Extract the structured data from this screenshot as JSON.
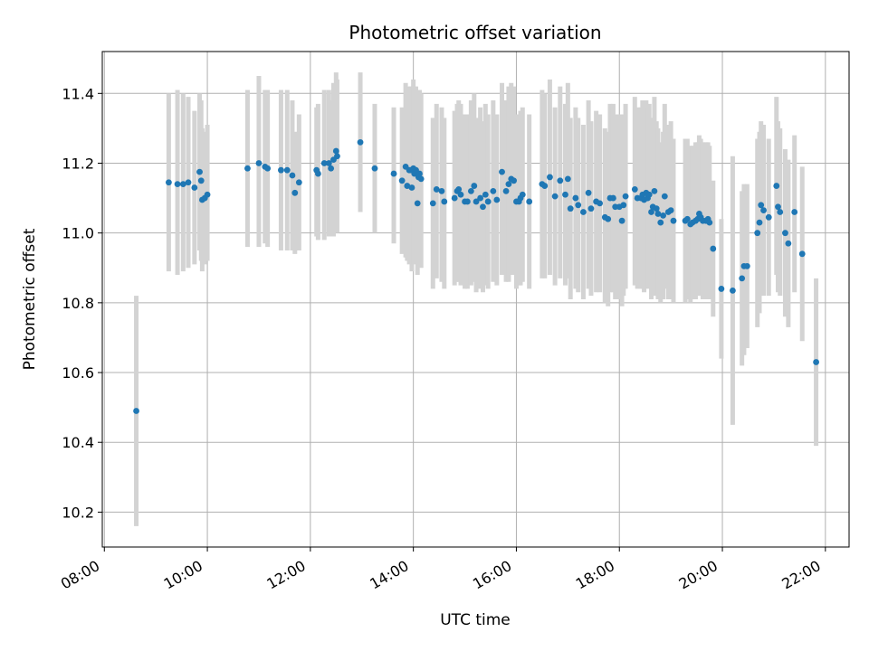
{
  "chart_data": {
    "type": "scatter",
    "title": "Photometric offset variation",
    "xlabel": "UTC time",
    "ylabel": "Photometric offset",
    "x_unit": "hours (UTC)",
    "xlim": [
      7.96,
      22.46
    ],
    "ylim": [
      10.1,
      11.52
    ],
    "xticks": [
      8,
      10,
      12,
      14,
      16,
      18,
      20,
      22
    ],
    "xtick_labels": [
      "08:00",
      "10:00",
      "12:00",
      "14:00",
      "16:00",
      "18:00",
      "20:00",
      "22:00"
    ],
    "yticks": [
      10.2,
      10.4,
      10.6,
      10.8,
      11.0,
      11.2,
      11.4
    ],
    "ytick_labels": [
      "10.2",
      "10.4",
      "10.6",
      "10.8",
      "11.0",
      "11.2",
      "11.4"
    ],
    "grid": true,
    "colors": {
      "marker": "#1f77b4",
      "errorbar": "#d3d3d3",
      "grid": "#b0b0b0"
    },
    "series": [
      {
        "x": [
          8.62,
          9.25,
          9.42,
          9.53,
          9.63,
          9.75,
          9.85,
          9.88,
          9.9,
          9.95,
          10.0,
          10.78,
          11.0,
          11.12,
          11.17,
          11.43,
          11.55,
          11.65,
          11.7,
          11.78,
          12.12,
          12.15,
          12.27,
          12.36,
          12.4,
          12.45,
          12.5,
          12.52,
          12.97,
          13.25,
          13.62,
          13.78,
          13.85,
          13.88,
          13.92,
          13.95,
          13.97,
          14.0,
          14.02,
          14.05,
          14.08,
          14.1,
          14.12,
          14.15,
          14.38,
          14.45,
          14.55,
          14.6,
          14.8,
          14.85,
          14.88,
          14.92,
          15.0,
          15.05,
          15.12,
          15.18,
          15.22,
          15.3,
          15.35,
          15.4,
          15.45,
          15.55,
          15.62,
          15.72,
          15.8,
          15.85,
          15.9,
          15.95,
          16.0,
          16.05,
          16.08,
          16.12,
          16.25,
          16.5,
          16.55,
          16.65,
          16.75,
          16.85,
          16.95,
          17.0,
          17.05,
          17.15,
          17.2,
          17.3,
          17.4,
          17.45,
          17.55,
          17.62,
          17.72,
          17.78,
          17.82,
          17.88,
          17.92,
          18.0,
          18.05,
          18.08,
          18.12,
          18.3,
          18.35,
          18.42,
          18.45,
          18.48,
          18.52,
          18.55,
          18.58,
          18.62,
          18.65,
          18.68,
          18.72,
          18.75,
          18.8,
          18.85,
          18.88,
          18.95,
          19.0,
          19.05,
          19.28,
          19.32,
          19.38,
          19.42,
          19.48,
          19.52,
          19.55,
          19.58,
          19.62,
          19.68,
          19.72,
          19.75,
          19.82,
          19.98,
          20.2,
          20.38,
          20.42,
          20.48,
          20.68,
          20.72,
          20.75,
          20.8,
          20.9,
          21.05,
          21.08,
          21.12,
          21.22,
          21.28,
          21.4,
          21.55,
          21.82
        ],
        "y": [
          10.49,
          11.145,
          11.14,
          11.14,
          11.145,
          11.13,
          11.175,
          11.15,
          11.095,
          11.1,
          11.11,
          11.185,
          11.2,
          11.19,
          11.185,
          11.18,
          11.18,
          11.165,
          11.115,
          11.145,
          11.18,
          11.17,
          11.2,
          11.2,
          11.185,
          11.21,
          11.235,
          11.22,
          11.26,
          11.185,
          11.17,
          11.15,
          11.19,
          11.135,
          11.18,
          11.18,
          11.13,
          11.185,
          11.17,
          11.18,
          11.085,
          11.16,
          11.17,
          11.155,
          11.085,
          11.125,
          11.12,
          11.09,
          11.1,
          11.12,
          11.125,
          11.11,
          11.09,
          11.09,
          11.12,
          11.135,
          11.09,
          11.1,
          11.075,
          11.11,
          11.09,
          11.12,
          11.095,
          11.175,
          11.12,
          11.14,
          11.155,
          11.15,
          11.09,
          11.09,
          11.1,
          11.11,
          11.09,
          11.14,
          11.135,
          11.16,
          11.105,
          11.15,
          11.11,
          11.155,
          11.07,
          11.1,
          11.08,
          11.06,
          11.115,
          11.07,
          11.09,
          11.085,
          11.045,
          11.04,
          11.1,
          11.1,
          11.075,
          11.075,
          11.035,
          11.08,
          11.105,
          11.125,
          11.1,
          11.1,
          11.11,
          11.095,
          11.115,
          11.1,
          11.11,
          11.06,
          11.075,
          11.12,
          11.07,
          11.055,
          11.03,
          11.05,
          11.105,
          11.06,
          11.065,
          11.035,
          11.035,
          11.04,
          11.025,
          11.03,
          11.035,
          11.04,
          11.055,
          11.045,
          11.035,
          11.035,
          11.04,
          11.03,
          10.955,
          10.84,
          10.835,
          10.87,
          10.905,
          10.905,
          11.0,
          11.03,
          11.08,
          11.065,
          11.045,
          11.135,
          11.075,
          11.06,
          11.0,
          10.97,
          11.06,
          10.94,
          10.63
        ],
        "yerr_low": [
          10.16,
          10.89,
          10.88,
          10.89,
          10.9,
          10.91,
          10.95,
          10.92,
          10.89,
          10.91,
          10.92,
          10.96,
          10.96,
          10.97,
          10.96,
          10.95,
          10.95,
          10.95,
          10.94,
          10.95,
          10.99,
          10.98,
          10.98,
          10.99,
          10.99,
          10.99,
          11.0,
          11.0,
          11.06,
          11.0,
          10.97,
          10.94,
          10.93,
          10.92,
          10.91,
          10.92,
          10.89,
          10.91,
          10.92,
          10.92,
          10.88,
          10.91,
          10.92,
          10.9,
          10.84,
          10.87,
          10.86,
          10.84,
          10.85,
          10.86,
          10.86,
          10.85,
          10.84,
          10.84,
          10.85,
          10.86,
          10.83,
          10.84,
          10.83,
          10.85,
          10.84,
          10.86,
          10.85,
          10.88,
          10.86,
          10.86,
          10.88,
          10.88,
          10.84,
          10.85,
          10.85,
          10.86,
          10.84,
          10.87,
          10.87,
          10.88,
          10.85,
          10.87,
          10.85,
          10.87,
          10.81,
          10.84,
          10.83,
          10.81,
          10.84,
          10.82,
          10.83,
          10.83,
          10.8,
          10.79,
          10.83,
          10.83,
          10.81,
          10.81,
          10.79,
          10.82,
          10.84,
          10.85,
          10.84,
          10.84,
          10.84,
          10.83,
          10.85,
          10.84,
          10.85,
          10.81,
          10.82,
          10.85,
          10.82,
          10.81,
          10.8,
          10.81,
          10.84,
          10.81,
          10.81,
          10.8,
          10.8,
          10.81,
          10.8,
          10.81,
          10.81,
          10.82,
          10.83,
          10.82,
          10.81,
          10.81,
          10.82,
          10.81,
          10.76,
          10.64,
          10.45,
          10.62,
          10.65,
          10.67,
          10.73,
          10.77,
          10.84,
          10.82,
          10.82,
          10.88,
          10.83,
          10.82,
          10.76,
          10.73,
          10.83,
          10.69,
          10.39
        ],
        "yerr_high": [
          10.82,
          11.4,
          11.41,
          11.4,
          11.39,
          11.35,
          11.4,
          11.38,
          11.3,
          11.29,
          11.31,
          11.41,
          11.45,
          11.41,
          11.41,
          11.41,
          11.41,
          11.38,
          11.29,
          11.34,
          11.36,
          11.37,
          11.41,
          11.41,
          11.38,
          11.43,
          11.46,
          11.44,
          11.46,
          11.37,
          11.36,
          11.36,
          11.43,
          11.35,
          11.42,
          11.42,
          11.37,
          11.44,
          11.41,
          11.42,
          11.29,
          11.4,
          11.41,
          11.4,
          11.33,
          11.37,
          11.36,
          11.33,
          11.35,
          11.37,
          11.38,
          11.37,
          11.34,
          11.34,
          11.38,
          11.4,
          11.33,
          11.36,
          11.32,
          11.37,
          11.34,
          11.38,
          11.34,
          11.43,
          11.38,
          11.42,
          11.43,
          11.42,
          11.34,
          11.33,
          11.35,
          11.36,
          11.34,
          11.41,
          11.4,
          11.44,
          11.36,
          11.42,
          11.37,
          11.43,
          11.33,
          11.36,
          11.33,
          11.31,
          11.38,
          11.32,
          11.35,
          11.34,
          11.3,
          11.29,
          11.37,
          11.37,
          11.34,
          11.34,
          11.28,
          11.34,
          11.37,
          11.39,
          11.36,
          11.36,
          11.38,
          11.36,
          11.38,
          11.36,
          11.37,
          11.31,
          11.33,
          11.39,
          11.32,
          11.3,
          11.26,
          11.29,
          11.37,
          11.31,
          11.32,
          11.27,
          11.27,
          11.27,
          11.25,
          11.25,
          11.26,
          11.26,
          11.28,
          11.27,
          11.26,
          11.26,
          11.26,
          11.25,
          11.15,
          11.04,
          11.22,
          11.12,
          11.14,
          11.14,
          11.27,
          11.29,
          11.32,
          11.31,
          11.27,
          11.39,
          11.32,
          11.3,
          11.24,
          11.21,
          11.28,
          11.19,
          10.87
        ]
      }
    ]
  }
}
